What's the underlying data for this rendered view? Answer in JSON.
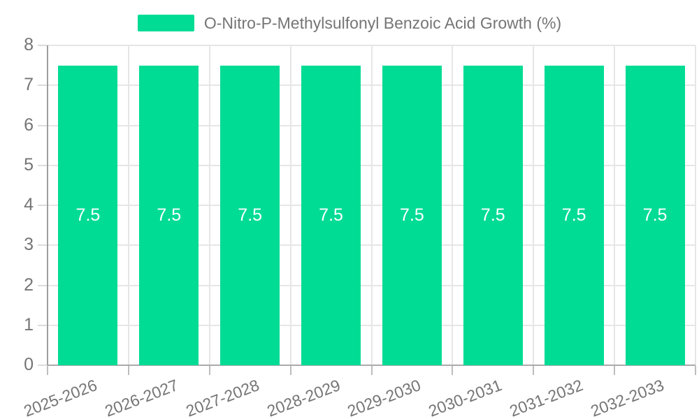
{
  "legend": {
    "label": "O-Nitro-P-Methylsulfonyl Benzoic Acid Growth (%)",
    "swatch_color": "#00DC94"
  },
  "chart_data": {
    "type": "bar",
    "title": "O-Nitro-P-Methylsulfonyl Benzoic Acid Growth (%)",
    "categories": [
      "2025-2026",
      "2026-2027",
      "2027-2028",
      "2028-2029",
      "2029-2030",
      "2030-2031",
      "2031-2032",
      "2032-2033"
    ],
    "series": [
      {
        "name": "O-Nitro-P-Methylsulfonyl Benzoic Acid Growth (%)",
        "values": [
          7.5,
          7.5,
          7.5,
          7.5,
          7.5,
          7.5,
          7.5,
          7.5
        ],
        "color": "#00DC94"
      }
    ],
    "value_labels": [
      "7.5",
      "7.5",
      "7.5",
      "7.5",
      "7.5",
      "7.5",
      "7.5",
      "7.5"
    ],
    "xlabel": "",
    "ylabel": "",
    "ylim": [
      0,
      8
    ],
    "yticks": [
      0,
      1,
      2,
      3,
      4,
      5,
      6,
      7,
      8
    ],
    "grid": true,
    "legend_position": "top",
    "value_label_color": "#FFFFFF",
    "axis_text_color": "#757575",
    "gridline_color": "#E6E6E6",
    "background_color": "#FFFFFF"
  }
}
